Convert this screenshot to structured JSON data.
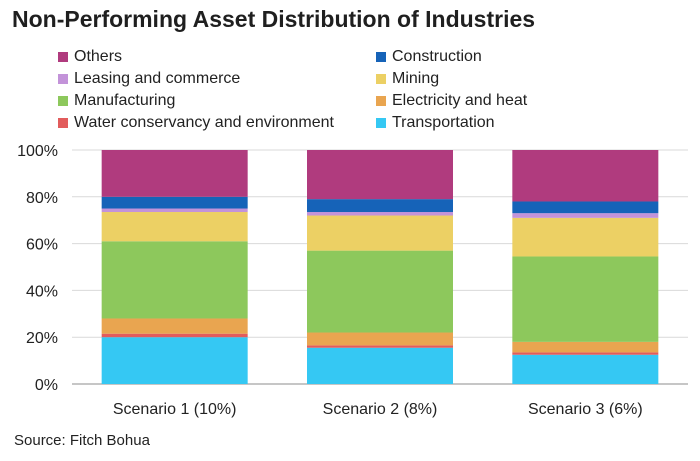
{
  "title": "Non-Performing Asset Distribution of Industries",
  "source": "Source: Fitch Bohua",
  "colors": {
    "Others": "#b03b7e",
    "Construction": "#1663b8",
    "Leasing and commerce": "#c393d9",
    "Mining": "#ecd064",
    "Manufacturing": "#8dc85c",
    "Electricity and heat": "#e9a550",
    "Water conservancy and environment": "#e25c5c",
    "Transportation": "#35c8f3"
  },
  "chart_data": {
    "type": "bar",
    "stacked": true,
    "title": "Non-Performing Asset Distribution of Industries",
    "categories": [
      "Scenario 1 (10%)",
      "Scenario 2 (8%)",
      "Scenario 3 (6%)"
    ],
    "ylim": [
      0,
      100
    ],
    "yticks": [
      "0%",
      "20%",
      "40%",
      "60%",
      "80%",
      "100%"
    ],
    "grid": true,
    "legend_position": "top",
    "legend_order": [
      "Others",
      "Construction",
      "Leasing and commerce",
      "Mining",
      "Manufacturing",
      "Electricity and heat",
      "Water conservancy and environment",
      "Transportation"
    ],
    "series": [
      {
        "name": "Transportation",
        "values": [
          20,
          15.5,
          12.5
        ]
      },
      {
        "name": "Water conservancy and environment",
        "values": [
          1.5,
          1,
          1
        ]
      },
      {
        "name": "Electricity and heat",
        "values": [
          6.5,
          5.5,
          4.5
        ]
      },
      {
        "name": "Manufacturing",
        "values": [
          33,
          35,
          36.5
        ]
      },
      {
        "name": "Mining",
        "values": [
          12.5,
          15,
          16.5
        ]
      },
      {
        "name": "Leasing and commerce",
        "values": [
          1.5,
          1.5,
          2
        ]
      },
      {
        "name": "Construction",
        "values": [
          5,
          5.5,
          5
        ]
      },
      {
        "name": "Others",
        "values": [
          20,
          21,
          22
        ]
      }
    ]
  }
}
